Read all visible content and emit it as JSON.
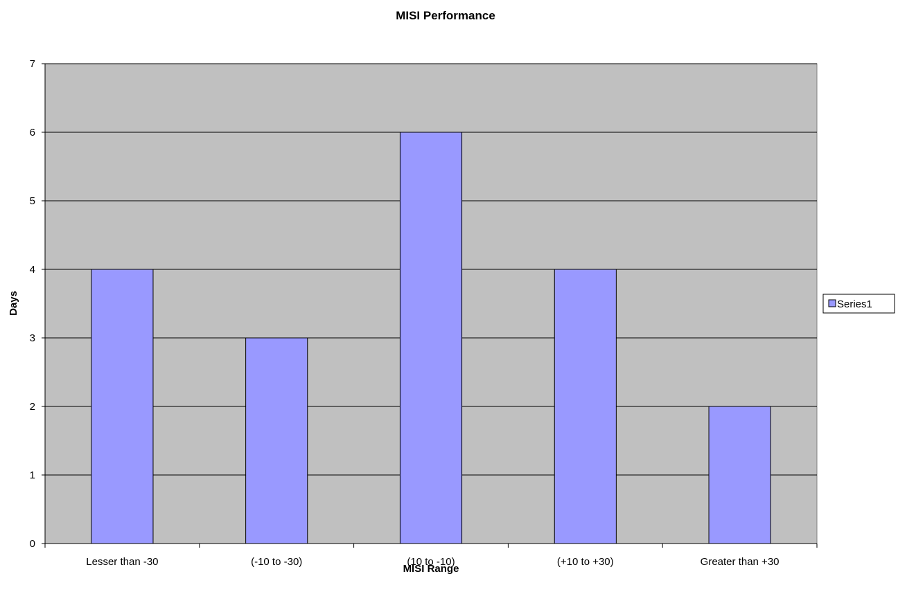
{
  "chart_data": {
    "type": "bar",
    "title": "MISI Performance",
    "xlabel": "MISI Range",
    "ylabel": "Days",
    "categories": [
      "Lesser than -30",
      "(-10 to -30)",
      "(10 to -10)",
      "(+10 to +30)",
      "Greater than +30"
    ],
    "series": [
      {
        "name": "Series1",
        "values": [
          4,
          3,
          6,
          4,
          2
        ]
      }
    ],
    "ylim": [
      0,
      7
    ],
    "yticks": [
      "0",
      "1",
      "2",
      "3",
      "4",
      "5",
      "6",
      "7"
    ],
    "grid": true,
    "legend_position": "right",
    "colors": {
      "bar_fill": "#9999ff",
      "plot_background": "#c0c0c0",
      "gridline": "#000000",
      "axis": "#000000"
    }
  }
}
